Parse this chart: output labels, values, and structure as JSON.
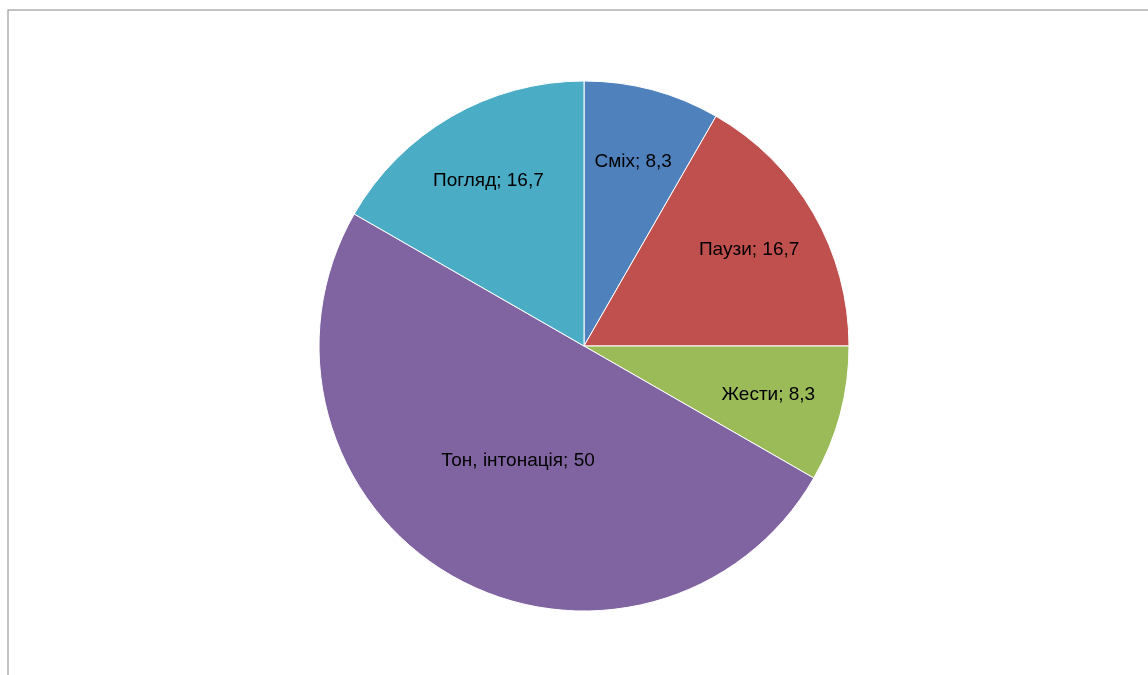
{
  "chart_data": {
    "type": "pie",
    "categories": [
      "Сміх",
      "Паузи",
      "Жести",
      "Тон, інтонація",
      "Погляд"
    ],
    "values": [
      8.3,
      16.7,
      8.3,
      50,
      16.7
    ],
    "value_labels": [
      "; 8,3",
      "; 16,7",
      "; 8,3",
      "; 50",
      "; 16,7"
    ],
    "colors": [
      "#4f81bd",
      "#c0504d",
      "#9bbb59",
      "#8064a2",
      "#4bacc6"
    ]
  }
}
